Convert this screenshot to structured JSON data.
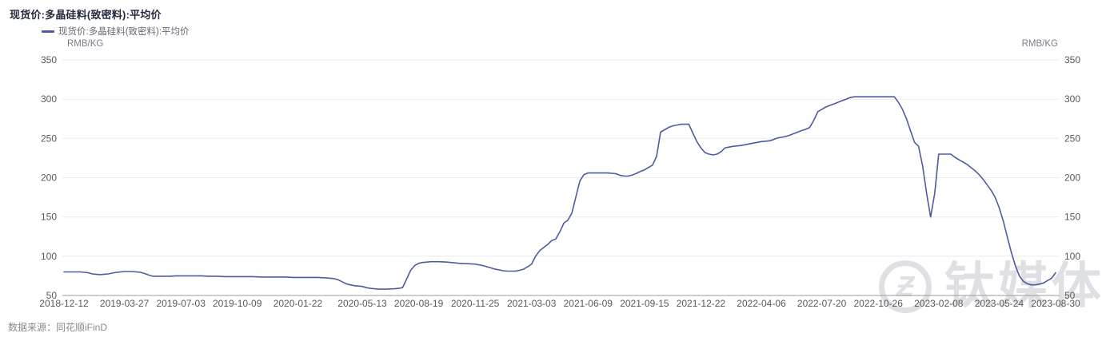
{
  "header": {
    "title": "现货价:多晶硅料(致密料):平均价"
  },
  "legend": {
    "items": [
      {
        "label": "现货价:多晶硅料(致密料):平均价"
      }
    ]
  },
  "axes": {
    "left_unit": "RMB/KG",
    "right_unit": "RMB/KG"
  },
  "footer": {
    "source": "数据来源：同花顺iFinD"
  },
  "watermark": {
    "text": "钛媒体",
    "logo_glyph": "Ƶ"
  },
  "colors": {
    "line": "#4e5b9e",
    "title": "#262a3e",
    "grid": "#ebebee",
    "axis_line": "#9b9ba1",
    "axis_text": "#595959",
    "watermark": "#dfe0e4"
  },
  "chart_data": {
    "type": "line",
    "title": "现货价:多晶硅料(致密料):平均价",
    "xlabel": "",
    "ylabel": "RMB/KG",
    "ylim": [
      50,
      350
    ],
    "y_ticks": [
      50,
      100,
      150,
      200,
      250,
      300,
      350
    ],
    "x_range": [
      "2018-12-12",
      "2023-08-30"
    ],
    "x_ticks": [
      "2018-12-12",
      "2019-03-27",
      "2019-07-03",
      "2019-10-09",
      "2020-01-22",
      "2020-05-13",
      "2020-08-19",
      "2020-11-25",
      "2021-03-03",
      "2021-06-09",
      "2021-09-15",
      "2021-12-22",
      "2022-04-06",
      "2022-07-20",
      "2022-10-26",
      "2023-02-08",
      "2023-05-24",
      "2023-08-30"
    ],
    "grid": true,
    "legend_position": "top-left",
    "series": [
      {
        "name": "现货价:多晶硅料(致密料):平均价",
        "unit": "RMB/KG",
        "color": "#4e5b9e",
        "points": [
          [
            "2018-12-12",
            80
          ],
          [
            "2018-12-26",
            80
          ],
          [
            "2019-01-09",
            80
          ],
          [
            "2019-01-16",
            79.5
          ],
          [
            "2019-01-23",
            79
          ],
          [
            "2019-01-30",
            77.5
          ],
          [
            "2019-02-06",
            77
          ],
          [
            "2019-02-13",
            76.5
          ],
          [
            "2019-02-20",
            77
          ],
          [
            "2019-02-27",
            77.5
          ],
          [
            "2019-03-06",
            78.5
          ],
          [
            "2019-03-13",
            79.5
          ],
          [
            "2019-03-20",
            80
          ],
          [
            "2019-03-27",
            80.5
          ],
          [
            "2019-04-10",
            80.5
          ],
          [
            "2019-04-17",
            80
          ],
          [
            "2019-04-24",
            79.5
          ],
          [
            "2019-05-01",
            78
          ],
          [
            "2019-05-08",
            76
          ],
          [
            "2019-05-15",
            74.5
          ],
          [
            "2019-05-29",
            74.5
          ],
          [
            "2019-06-12",
            74.5
          ],
          [
            "2019-06-26",
            75
          ],
          [
            "2019-07-10",
            75
          ],
          [
            "2019-07-24",
            75
          ],
          [
            "2019-08-07",
            75
          ],
          [
            "2019-08-21",
            74.5
          ],
          [
            "2019-09-04",
            74.5
          ],
          [
            "2019-09-18",
            74
          ],
          [
            "2019-10-09",
            74
          ],
          [
            "2019-10-23",
            74
          ],
          [
            "2019-11-06",
            74
          ],
          [
            "2019-11-20",
            73.5
          ],
          [
            "2019-12-04",
            73.5
          ],
          [
            "2019-12-18",
            73.5
          ],
          [
            "2020-01-01",
            73.5
          ],
          [
            "2020-01-15",
            73
          ],
          [
            "2020-01-29",
            73
          ],
          [
            "2020-02-12",
            73
          ],
          [
            "2020-02-26",
            73
          ],
          [
            "2020-03-11",
            72.5
          ],
          [
            "2020-03-25",
            71.5
          ],
          [
            "2020-04-01",
            70
          ],
          [
            "2020-04-08",
            67.5
          ],
          [
            "2020-04-15",
            65
          ],
          [
            "2020-04-22",
            63.5
          ],
          [
            "2020-04-29",
            62.5
          ],
          [
            "2020-05-06",
            62
          ],
          [
            "2020-05-13",
            61.5
          ],
          [
            "2020-05-20",
            60
          ],
          [
            "2020-05-27",
            59
          ],
          [
            "2020-06-03",
            58.5
          ],
          [
            "2020-06-10",
            58
          ],
          [
            "2020-06-24",
            58
          ],
          [
            "2020-07-08",
            58.5
          ],
          [
            "2020-07-15",
            59
          ],
          [
            "2020-07-22",
            60
          ],
          [
            "2020-07-29",
            71
          ],
          [
            "2020-08-05",
            82
          ],
          [
            "2020-08-12",
            88
          ],
          [
            "2020-08-19",
            91
          ],
          [
            "2020-08-26",
            92
          ],
          [
            "2020-09-02",
            92.5
          ],
          [
            "2020-09-09",
            93
          ],
          [
            "2020-09-23",
            93
          ],
          [
            "2020-10-07",
            92.5
          ],
          [
            "2020-10-14",
            92
          ],
          [
            "2020-10-28",
            91
          ],
          [
            "2020-11-11",
            90.5
          ],
          [
            "2020-11-25",
            90
          ],
          [
            "2020-12-09",
            88
          ],
          [
            "2020-12-16",
            86.5
          ],
          [
            "2020-12-23",
            85
          ],
          [
            "2020-12-30",
            83.5
          ],
          [
            "2021-01-06",
            82.5
          ],
          [
            "2021-01-13",
            81.5
          ],
          [
            "2021-01-20",
            81
          ],
          [
            "2021-01-27",
            81
          ],
          [
            "2021-02-03",
            81
          ],
          [
            "2021-02-10",
            82
          ],
          [
            "2021-02-17",
            83.5
          ],
          [
            "2021-02-24",
            86.5
          ],
          [
            "2021-03-03",
            90
          ],
          [
            "2021-03-10",
            100
          ],
          [
            "2021-03-17",
            107
          ],
          [
            "2021-03-24",
            111
          ],
          [
            "2021-03-31",
            115
          ],
          [
            "2021-04-07",
            120
          ],
          [
            "2021-04-14",
            122
          ],
          [
            "2021-04-21",
            131
          ],
          [
            "2021-04-28",
            142
          ],
          [
            "2021-05-05",
            146
          ],
          [
            "2021-05-12",
            155
          ],
          [
            "2021-05-19",
            176
          ],
          [
            "2021-05-26",
            196
          ],
          [
            "2021-06-02",
            204
          ],
          [
            "2021-06-09",
            206
          ],
          [
            "2021-06-16",
            206
          ],
          [
            "2021-06-30",
            206
          ],
          [
            "2021-07-14",
            206
          ],
          [
            "2021-07-28",
            205
          ],
          [
            "2021-08-04",
            203
          ],
          [
            "2021-08-11",
            202
          ],
          [
            "2021-08-18",
            202
          ],
          [
            "2021-08-25",
            203.5
          ],
          [
            "2021-09-01",
            205.5
          ],
          [
            "2021-09-08",
            208
          ],
          [
            "2021-09-15",
            210
          ],
          [
            "2021-09-22",
            213
          ],
          [
            "2021-09-29",
            216
          ],
          [
            "2021-10-06",
            227
          ],
          [
            "2021-10-13",
            258
          ],
          [
            "2021-10-20",
            261
          ],
          [
            "2021-10-27",
            264
          ],
          [
            "2021-11-03",
            266
          ],
          [
            "2021-11-10",
            267
          ],
          [
            "2021-11-17",
            268
          ],
          [
            "2021-11-24",
            268
          ],
          [
            "2021-12-01",
            268
          ],
          [
            "2021-12-08",
            257
          ],
          [
            "2021-12-15",
            246
          ],
          [
            "2021-12-22",
            238
          ],
          [
            "2021-12-29",
            232
          ],
          [
            "2022-01-05",
            230
          ],
          [
            "2022-01-12",
            229
          ],
          [
            "2022-01-19",
            230
          ],
          [
            "2022-01-26",
            233
          ],
          [
            "2022-02-02",
            238
          ],
          [
            "2022-02-09",
            239
          ],
          [
            "2022-02-16",
            240
          ],
          [
            "2022-02-23",
            240.5
          ],
          [
            "2022-03-02",
            241
          ],
          [
            "2022-03-09",
            242
          ],
          [
            "2022-03-16",
            243
          ],
          [
            "2022-03-23",
            244
          ],
          [
            "2022-03-30",
            245
          ],
          [
            "2022-04-06",
            246
          ],
          [
            "2022-04-13",
            246.5
          ],
          [
            "2022-04-20",
            247
          ],
          [
            "2022-04-27",
            248.5
          ],
          [
            "2022-05-04",
            250.5
          ],
          [
            "2022-05-11",
            251.5
          ],
          [
            "2022-05-18",
            252.5
          ],
          [
            "2022-05-25",
            254
          ],
          [
            "2022-06-01",
            256
          ],
          [
            "2022-06-08",
            258
          ],
          [
            "2022-06-15",
            260
          ],
          [
            "2022-06-22",
            261.5
          ],
          [
            "2022-06-29",
            264
          ],
          [
            "2022-07-06",
            273
          ],
          [
            "2022-07-13",
            284
          ],
          [
            "2022-07-20",
            287
          ],
          [
            "2022-07-27",
            290
          ],
          [
            "2022-08-03",
            292
          ],
          [
            "2022-08-10",
            294
          ],
          [
            "2022-08-17",
            296
          ],
          [
            "2022-08-24",
            298
          ],
          [
            "2022-08-31",
            300
          ],
          [
            "2022-09-07",
            302
          ],
          [
            "2022-09-14",
            303
          ],
          [
            "2022-09-28",
            303
          ],
          [
            "2022-10-12",
            303
          ],
          [
            "2022-10-26",
            303
          ],
          [
            "2022-11-09",
            303
          ],
          [
            "2022-11-23",
            303
          ],
          [
            "2022-11-30",
            296
          ],
          [
            "2022-12-07",
            287
          ],
          [
            "2022-12-14",
            275
          ],
          [
            "2022-12-21",
            260
          ],
          [
            "2022-12-28",
            245
          ],
          [
            "2023-01-04",
            240
          ],
          [
            "2023-01-11",
            215
          ],
          [
            "2023-01-18",
            180
          ],
          [
            "2023-01-25",
            150
          ],
          [
            "2023-02-01",
            180
          ],
          [
            "2023-02-08",
            230
          ],
          [
            "2023-02-22",
            230
          ],
          [
            "2023-03-01",
            230
          ],
          [
            "2023-03-08",
            226
          ],
          [
            "2023-03-15",
            223
          ],
          [
            "2023-03-22",
            220
          ],
          [
            "2023-03-29",
            217
          ],
          [
            "2023-04-05",
            213
          ],
          [
            "2023-04-12",
            209
          ],
          [
            "2023-04-19",
            204
          ],
          [
            "2023-04-26",
            198
          ],
          [
            "2023-05-03",
            191
          ],
          [
            "2023-05-10",
            184
          ],
          [
            "2023-05-17",
            175
          ],
          [
            "2023-05-24",
            162
          ],
          [
            "2023-05-31",
            145
          ],
          [
            "2023-06-07",
            125
          ],
          [
            "2023-06-14",
            105
          ],
          [
            "2023-06-21",
            88
          ],
          [
            "2023-06-28",
            75
          ],
          [
            "2023-07-05",
            68
          ],
          [
            "2023-07-12",
            65
          ],
          [
            "2023-07-19",
            63.5
          ],
          [
            "2023-07-26",
            63.5
          ],
          [
            "2023-08-02",
            64.5
          ],
          [
            "2023-08-09",
            66
          ],
          [
            "2023-08-16",
            69
          ],
          [
            "2023-08-23",
            72
          ],
          [
            "2023-08-30",
            79
          ]
        ]
      }
    ]
  }
}
